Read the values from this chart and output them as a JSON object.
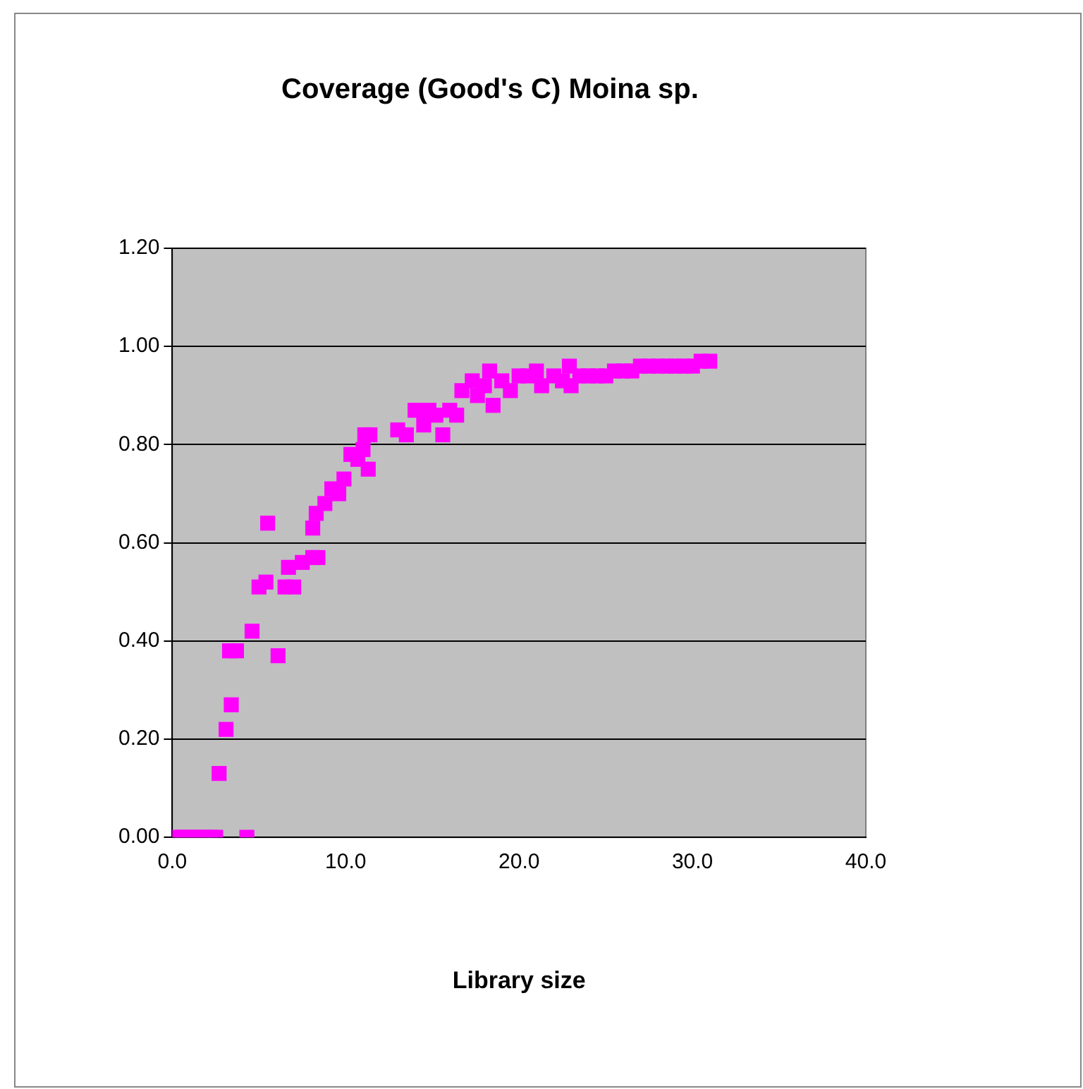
{
  "chart_data": {
    "type": "scatter",
    "title": "Coverage (Good's C) Moina sp.",
    "xlabel": "Library size",
    "x": [
      0.2,
      0.6,
      1.0,
      1.4,
      1.8,
      2.2,
      2.5,
      2.7,
      3.1,
      3.4,
      3.3,
      3.7,
      4.3,
      4.6,
      5.0,
      5.4,
      5.5,
      6.1,
      6.5,
      6.7,
      7.0,
      7.5,
      8.1,
      8.1,
      8.4,
      8.3,
      8.8,
      9.2,
      9.6,
      9.9,
      10.3,
      10.7,
      11.0,
      11.1,
      11.3,
      11.4,
      13.0,
      13.5,
      14.0,
      14.5,
      14.8,
      15.2,
      15.6,
      16.0,
      16.4,
      16.7,
      17.3,
      17.6,
      18.0,
      18.3,
      18.5,
      19.0,
      19.5,
      20.0,
      20.5,
      21.0,
      21.3,
      22.0,
      22.5,
      22.9,
      23.0,
      23.5,
      24.0,
      24.5,
      25.0,
      25.5,
      26.0,
      26.5,
      27.0,
      27.5,
      28.0,
      28.5,
      29.0,
      29.5,
      30.0,
      30.5,
      31.0
    ],
    "series": [
      {
        "color": "#ff00ff",
        "values": [
          0,
          0,
          0,
          0,
          0,
          0,
          0,
          0.13,
          0.22,
          0.27,
          0.38,
          0.38,
          0,
          0.42,
          0.51,
          0.52,
          0.64,
          0.37,
          0.51,
          0.55,
          0.51,
          0.56,
          0.57,
          0.63,
          0.57,
          0.66,
          0.68,
          0.71,
          0.7,
          0.73,
          0.78,
          0.77,
          0.79,
          0.82,
          0.75,
          0.82,
          0.83,
          0.82,
          0.87,
          0.84,
          0.87,
          0.86,
          0.82,
          0.87,
          0.86,
          0.91,
          0.93,
          0.9,
          0.92,
          0.95,
          0.88,
          0.93,
          0.91,
          0.94,
          0.94,
          0.95,
          0.92,
          0.94,
          0.93,
          0.96,
          0.92,
          0.94,
          0.94,
          0.94,
          0.94,
          0.95,
          0.95,
          0.95,
          0.96,
          0.96,
          0.96,
          0.96,
          0.96,
          0.96,
          0.96,
          0.97,
          0.97
        ]
      }
    ],
    "xlim": [
      0,
      40
    ],
    "xticks": [
      {
        "value": 0,
        "label": "0.0"
      },
      {
        "value": 10,
        "label": "10.0"
      },
      {
        "value": 20,
        "label": "20.0"
      },
      {
        "value": 30,
        "label": "30.0"
      },
      {
        "value": 40,
        "label": "40.0"
      }
    ],
    "ylim": [
      0,
      1.2
    ],
    "yticks": [
      {
        "value": 0,
        "label": "0.00"
      },
      {
        "value": 0.2,
        "label": "0.20"
      },
      {
        "value": 0.4,
        "label": "0.40"
      },
      {
        "value": 0.6,
        "label": "0.60"
      },
      {
        "value": 0.8,
        "label": "0.80"
      },
      {
        "value": 1.0,
        "label": "1.00"
      },
      {
        "value": 1.2,
        "label": "1.20"
      }
    ],
    "grid": "y",
    "legend": false,
    "marker": "square"
  }
}
